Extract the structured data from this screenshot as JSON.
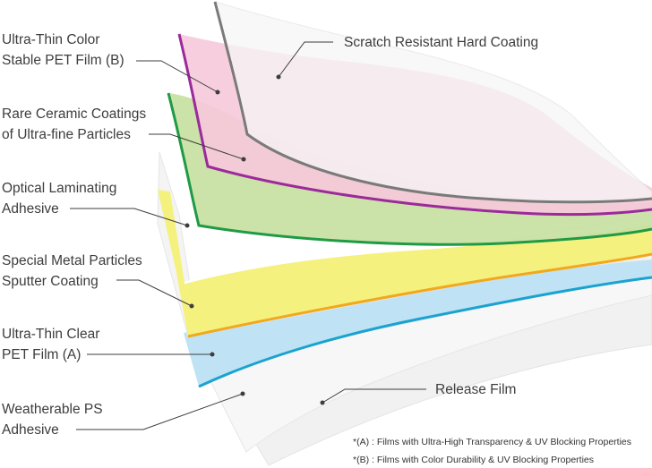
{
  "labels": {
    "pet_b": [
      "Ultra-Thin Color",
      "Stable PET Film (B)"
    ],
    "ceramic": [
      "Rare Ceramic Coatings",
      "of Ultra-fine Particles"
    ],
    "adhesive": [
      "Optical Laminating",
      "Adhesive"
    ],
    "metal": [
      "Special Metal Particles",
      "Sputter Coating"
    ],
    "pet_a": [
      "Ultra-Thin Clear",
      "PET Film (A)"
    ],
    "ps_adhesive": [
      "Weatherable PS",
      "Adhesive"
    ],
    "scratch": "Scratch Resistant Hard Coating",
    "release": "Release Film"
  },
  "notes": {
    "a": "*(A) : Films with Ultra-High Transparency & UV Blocking Properties",
    "b": "*(B) : Films with Color Durability & UV Blocking Properties"
  },
  "colors": {
    "scratch": "#7a7a7a",
    "pet_b": "#9b2a9b",
    "ceramic": "#1f9a45",
    "metal": "#f2a81d",
    "pet_a": "#1aa3cf",
    "pink_fill": "#f6c9da",
    "green_fill": "#c7e0a2",
    "yellow_fill": "#f4f078",
    "blue_fill": "#bfe3f5"
  }
}
